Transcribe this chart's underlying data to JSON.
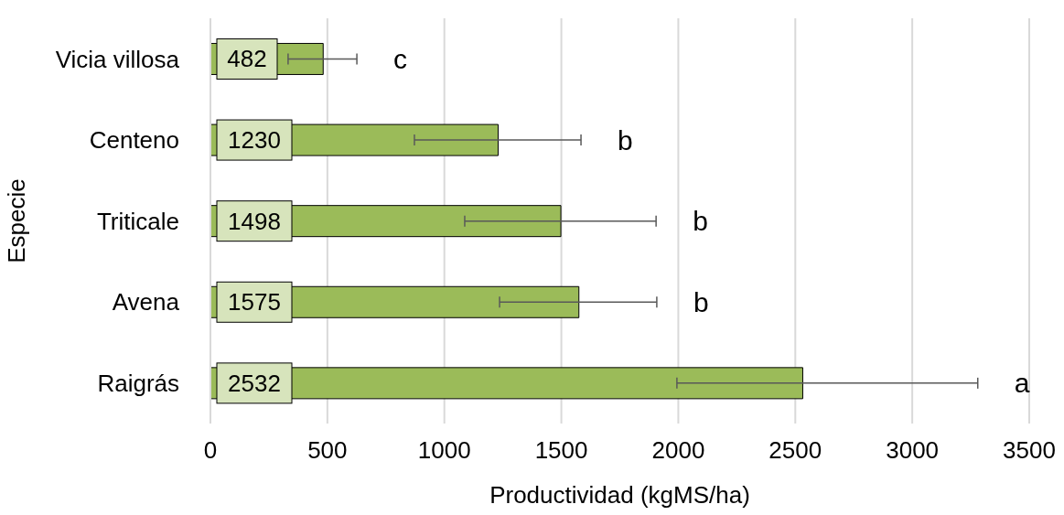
{
  "chart_data": {
    "type": "bar",
    "orientation": "horizontal",
    "xlabel": "Productividad (kgMS/ha)",
    "ylabel": "Especie",
    "categories": [
      "Vicia villosa",
      "Centeno",
      "Triticale",
      "Avena",
      "Raigrás"
    ],
    "values": [
      482,
      1230,
      1498,
      1575,
      2532
    ],
    "errors": [
      [
        332,
        626
      ],
      [
        872,
        1584
      ],
      [
        1087,
        1905
      ],
      [
        1236,
        1908
      ],
      [
        1994,
        3280
      ]
    ],
    "color": "#9bbb59",
    "data_labels": true,
    "xlim": [
      0,
      3500
    ],
    "xticks": [
      0,
      500,
      1000,
      1500,
      2000,
      2500,
      3000,
      3500
    ],
    "grid": "x",
    "annotations": [
      "c",
      "b",
      "b",
      "b",
      "a"
    ]
  }
}
